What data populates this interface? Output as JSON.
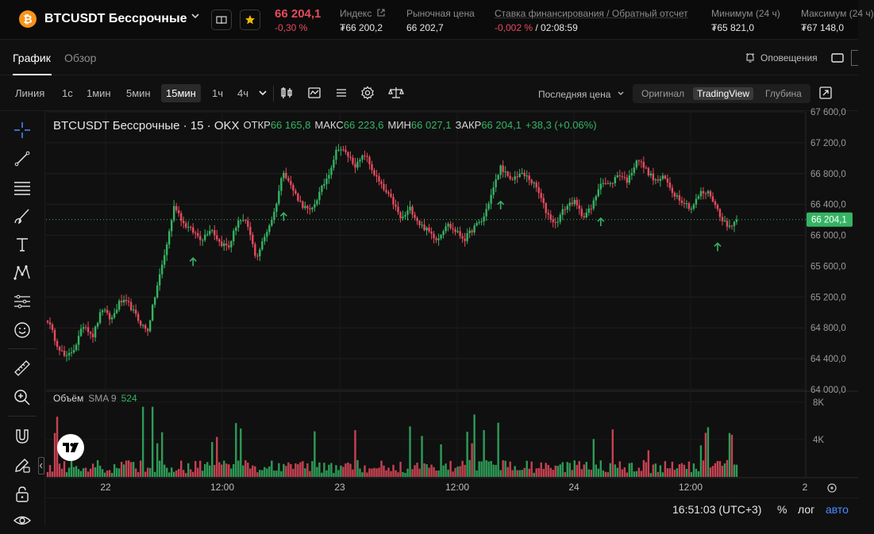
{
  "header": {
    "coin_glyph": "₿",
    "pair_title": "BTCUSDT Бессрочные",
    "price": "66 204,1",
    "change": "-0,30 %",
    "stats": [
      {
        "label": "Индекс",
        "value": "₮66 200,2"
      },
      {
        "label": "Рыночная цена",
        "value": "66 202,7"
      },
      {
        "label": "Ставка финансирования / Обратный отсчет",
        "value_neg": "-0,002 %",
        "value_sep": " / ",
        "value": "02:08:59"
      },
      {
        "label": "Минимум (24 ч)",
        "value": "₮65 821,0"
      },
      {
        "label": "Максимум (24 ч)",
        "value": "₮67 148,0"
      }
    ]
  },
  "tabs": {
    "items": [
      "График",
      "Обзор"
    ],
    "alerts": "Оповещения"
  },
  "toolbar": {
    "timeframes": [
      "Линия",
      "1с",
      "1мин",
      "5мин",
      "15мин",
      "1ч",
      "4ч"
    ],
    "active_timeframe": "15мин",
    "price_type": "Последняя цена",
    "views": [
      "Оригинал",
      "TradingView",
      "Глубина"
    ],
    "active_view": "TradingView"
  },
  "legend": {
    "title": "BTCUSDT Бессрочные · 15 · OKX",
    "open_label": "ОТКР",
    "open": "66 165,8",
    "high_label": "МАКС",
    "high": "66 223,6",
    "low_label": "МИН",
    "low": "66 027,1",
    "close_label": "ЗАКР",
    "close": "66 204,1",
    "change": "+38,3 (+0.06%)"
  },
  "volume_legend": {
    "label": "Объём",
    "sma": "SMA 9",
    "value": "524"
  },
  "bottom": {
    "clock": "16:51:03 (UTC+3)",
    "percent": "%",
    "log": "лог",
    "auto": "авто",
    "goto_label": "2"
  },
  "colors": {
    "up": "#35b463",
    "down": "#e64b5e",
    "background": "#101010",
    "last_price_tag": "#35b463"
  },
  "chart_data": {
    "type": "candlestick",
    "price_axis_ticks": [
      "67 600,0",
      "67 200,0",
      "66 800,0",
      "66 400,0",
      "66 000,0",
      "65 600,0",
      "65 200,0",
      "64 800,0",
      "64 400,0",
      "64 000,0"
    ],
    "ylim": [
      64000,
      67600
    ],
    "last_price": "66 204,1",
    "volume_axis_ticks": [
      "8K",
      "4K"
    ],
    "time_axis_ticks": [
      "22",
      "12:00",
      "23",
      "12:00",
      "24",
      "12:00"
    ],
    "close_path_approx": [
      64900,
      64600,
      64400,
      64550,
      64850,
      64700,
      65050,
      64900,
      65150,
      65100,
      64900,
      64750,
      65300,
      65800,
      66400,
      66150,
      66050,
      65950,
      66100,
      65900,
      65850,
      66200,
      66150,
      65700,
      66000,
      66300,
      66850,
      66600,
      66400,
      66300,
      66550,
      66800,
      67150,
      67050,
      66900,
      67050,
      66800,
      66600,
      66450,
      66200,
      66350,
      66150,
      66050,
      65950,
      66150,
      66050,
      65950,
      66100,
      66200,
      66550,
      66900,
      66700,
      66800,
      66750,
      66600,
      66300,
      66150,
      66350,
      66450,
      66250,
      66350,
      66700,
      66650,
      66800,
      66700,
      67000,
      66850,
      66700,
      66750,
      66550,
      66450,
      66350,
      66550,
      66550,
      66300,
      66100,
      66204
    ],
    "arrows_at_index": [
      16,
      26,
      50,
      61,
      74
    ]
  }
}
